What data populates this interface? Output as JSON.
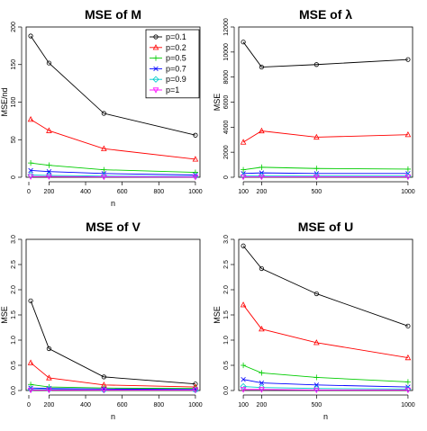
{
  "chart_data": [
    {
      "type": "line",
      "title": "MSE of M",
      "xlabel": "n",
      "ylabel": "MSE/nd",
      "xlim": [
        75,
        1025
      ],
      "ylim": [
        0,
        200
      ],
      "x_ticks": [
        0,
        200,
        400,
        600,
        800,
        1000
      ],
      "y_ticks": [
        0,
        50,
        100,
        150,
        200
      ],
      "x": [
        100,
        200,
        500,
        1000
      ],
      "legend_position": "top-right",
      "series": [
        {
          "name": "p=0.1",
          "color": "#000000",
          "marker": "circle",
          "values": [
            188,
            152,
            85,
            56
          ]
        },
        {
          "name": "p=0.2",
          "color": "#ff0000",
          "marker": "triangle-up",
          "values": [
            77,
            62,
            38,
            24
          ]
        },
        {
          "name": "p=0.5",
          "color": "#00cc00",
          "marker": "plus",
          "values": [
            19,
            16,
            10,
            6.5
          ]
        },
        {
          "name": "p=0.7",
          "color": "#0000ff",
          "marker": "cross",
          "values": [
            9,
            7.5,
            5,
            3
          ]
        },
        {
          "name": "p=0.9",
          "color": "#00cccc",
          "marker": "diamond",
          "values": [
            3,
            2.5,
            1.5,
            1
          ]
        },
        {
          "name": "p=1",
          "color": "#ff00ff",
          "marker": "triangle-down",
          "values": [
            1,
            1,
            0.5,
            0.3
          ]
        }
      ]
    },
    {
      "type": "line",
      "title": "MSE of λ",
      "xlabel": "",
      "ylabel": "MSE",
      "xlim": [
        75,
        1025
      ],
      "ylim": [
        0,
        12000
      ],
      "x_ticks": [
        100,
        200,
        500,
        1000
      ],
      "y_ticks": [
        0,
        2000,
        4000,
        6000,
        8000,
        10000,
        12000
      ],
      "x": [
        100,
        200,
        500,
        1000
      ],
      "series": [
        {
          "color": "#000000",
          "marker": "circle",
          "values": [
            10800,
            8800,
            9000,
            9400
          ]
        },
        {
          "color": "#ff0000",
          "marker": "triangle-up",
          "values": [
            2800,
            3700,
            3200,
            3400
          ]
        },
        {
          "color": "#00cc00",
          "marker": "plus",
          "values": [
            600,
            800,
            700,
            650
          ]
        },
        {
          "color": "#0000ff",
          "marker": "cross",
          "values": [
            300,
            350,
            300,
            300
          ]
        },
        {
          "color": "#00cccc",
          "marker": "diamond",
          "values": [
            100,
            100,
            100,
            100
          ]
        },
        {
          "color": "#ff00ff",
          "marker": "triangle-down",
          "values": [
            30,
            30,
            30,
            30
          ]
        }
      ]
    },
    {
      "type": "line",
      "title": "MSE of V",
      "xlabel": "n",
      "ylabel": "MSE",
      "xlim": [
        75,
        1025
      ],
      "ylim": [
        0,
        3.0
      ],
      "x_ticks": [
        0,
        200,
        400,
        600,
        800,
        1000
      ],
      "y_ticks": [
        0.0,
        0.5,
        1.0,
        1.5,
        2.0,
        2.5,
        3.0
      ],
      "x": [
        100,
        200,
        500,
        1000
      ],
      "series": [
        {
          "color": "#000000",
          "marker": "circle",
          "values": [
            1.78,
            0.83,
            0.27,
            0.13
          ]
        },
        {
          "color": "#ff0000",
          "marker": "triangle-up",
          "values": [
            0.55,
            0.25,
            0.11,
            0.07
          ]
        },
        {
          "color": "#00cc00",
          "marker": "plus",
          "values": [
            0.12,
            0.07,
            0.05,
            0.04
          ]
        },
        {
          "color": "#0000ff",
          "marker": "cross",
          "values": [
            0.05,
            0.04,
            0.03,
            0.02
          ]
        },
        {
          "color": "#00cccc",
          "marker": "diamond",
          "values": [
            0.02,
            0.02,
            0.01,
            0.01
          ]
        },
        {
          "color": "#ff00ff",
          "marker": "triangle-down",
          "values": [
            0.01,
            0.01,
            0.01,
            0.01
          ]
        }
      ]
    },
    {
      "type": "line",
      "title": "MSE of U",
      "xlabel": "n",
      "ylabel": "MSE",
      "xlim": [
        75,
        1025
      ],
      "ylim": [
        0,
        3.0
      ],
      "x_ticks": [
        100,
        200,
        500,
        1000
      ],
      "y_ticks": [
        0.0,
        0.5,
        1.0,
        1.5,
        2.0,
        2.5,
        3.0
      ],
      "x": [
        100,
        200,
        500,
        1000
      ],
      "series": [
        {
          "color": "#000000",
          "marker": "circle",
          "values": [
            2.87,
            2.42,
            1.92,
            1.28
          ]
        },
        {
          "color": "#ff0000",
          "marker": "triangle-up",
          "values": [
            1.7,
            1.22,
            0.95,
            0.65
          ]
        },
        {
          "color": "#00cc00",
          "marker": "plus",
          "values": [
            0.5,
            0.35,
            0.26,
            0.17
          ]
        },
        {
          "color": "#0000ff",
          "marker": "cross",
          "values": [
            0.22,
            0.15,
            0.11,
            0.07
          ]
        },
        {
          "color": "#00cccc",
          "marker": "diamond",
          "values": [
            0.08,
            0.06,
            0.04,
            0.03
          ]
        },
        {
          "color": "#ff00ff",
          "marker": "triangle-down",
          "values": [
            0.02,
            0.02,
            0.01,
            0.01
          ]
        }
      ]
    }
  ]
}
